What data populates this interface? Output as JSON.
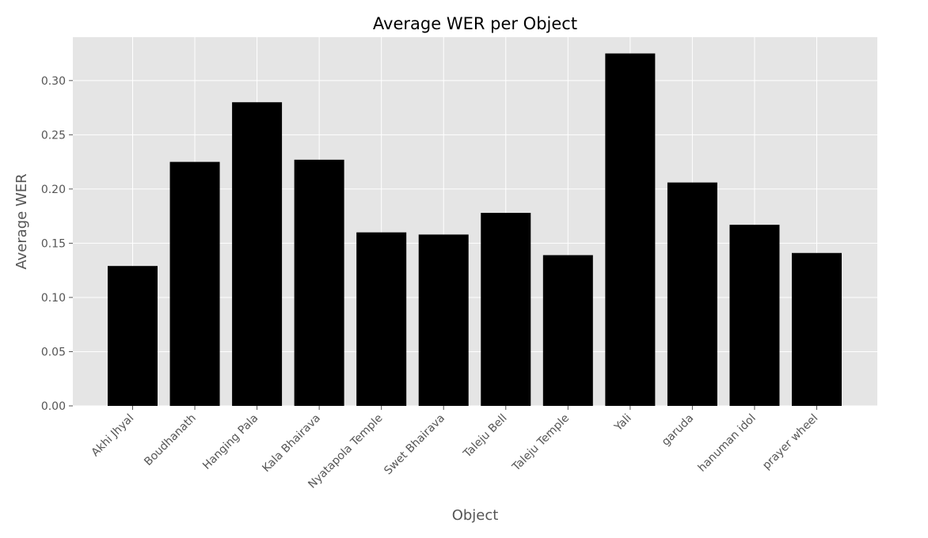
{
  "chart_data": {
    "type": "bar",
    "title": "Average WER per Object",
    "xlabel": "Object",
    "ylabel": "Average WER",
    "categories": [
      "Akhi Jhyal",
      "Boudhanath",
      "Hanging Pala",
      "Kala Bhairava",
      "Nyatapola Temple",
      "Swet Bhairava",
      "Taleju Bell",
      "Taleju Temple",
      "Yali",
      "garuda",
      "hanuman idol",
      "prayer wheel"
    ],
    "values": [
      0.129,
      0.225,
      0.28,
      0.227,
      0.16,
      0.158,
      0.178,
      0.139,
      0.325,
      0.206,
      0.167,
      0.141
    ],
    "ylim": [
      0,
      0.34
    ],
    "yticks": [
      "0.00",
      "0.05",
      "0.10",
      "0.15",
      "0.20",
      "0.25",
      "0.30"
    ],
    "grid": true,
    "bar_color": "#000000",
    "background_color": "#e5e5e5",
    "grid_color": "#ffffff"
  }
}
